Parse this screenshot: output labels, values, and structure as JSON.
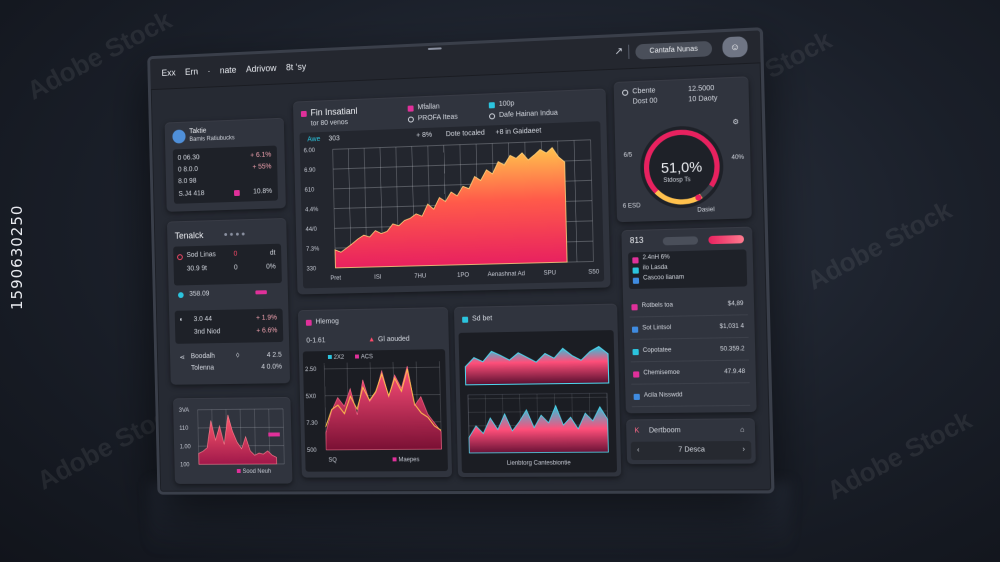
{
  "side_id": "1590630250",
  "watermark": "Adobe Stock",
  "topbar": {
    "menu": [
      "Exx",
      "Ern",
      "·",
      "nate",
      "Adrivow",
      "8t ‘sy"
    ],
    "pill": "Cantafa Nunas"
  },
  "left_panel": {
    "title": "Taktie",
    "subtitle": "Bamis Ratiubucks",
    "rows": [
      {
        "label": "0 06.30",
        "value": "+ 6.1%"
      },
      {
        "label": "0 8.0.0",
        "value": "+ 55%"
      },
      {
        "label": "8.0 98",
        "value": ""
      }
    ],
    "footer_label": "S.J4 418",
    "footer_value": "10.8%"
  },
  "mid_left_panel": {
    "title": "Tenalck",
    "rows": [
      {
        "a": "Sod Linas",
        "b": "0",
        "c": "dt"
      },
      {
        "a": "30.9 9t",
        "b": "0",
        "c": "0%"
      },
      {
        "a": "358.09",
        "b": "",
        "c": ""
      },
      {
        "a": "3.0 44",
        "b": "",
        "c": "+ 1.9%"
      },
      {
        "a": "3nd Niod",
        "b": "",
        "c": "+ 6.6%"
      },
      {
        "a": "Boodalh",
        "b": "",
        "c": "4 2.5"
      },
      {
        "a": "Tolenna",
        "b": "",
        "c": "4 0.0%"
      }
    ]
  },
  "main_chart": {
    "title": "Fin Insatianl",
    "subtitle": "tor 80 venos",
    "legend": [
      {
        "label": "Mfallan",
        "color": "#e0309a"
      },
      {
        "label": "PROFA Iteas",
        "color": "#d4d8e0"
      },
      {
        "label": "100p",
        "color": "#2bc4de"
      },
      {
        "label": "Dafe Hainan Indua",
        "color": "#d4d8e0"
      }
    ],
    "toolbar": [
      "Awe",
      "303",
      "+ 8%",
      "Dote tocaled",
      "+8 in Gaidaeet"
    ],
    "y_ticks": [
      "6.00",
      "6.90",
      "610",
      "4.4%",
      "44/0",
      "7.3%",
      "330"
    ],
    "x_ticks": [
      "Pret",
      "ISI",
      "7HU",
      "1PO",
      "Aenashnat Ad",
      "SPU",
      "S50"
    ],
    "series": [
      35,
      30,
      38,
      46,
      55,
      62,
      58,
      70,
      64,
      68,
      82,
      78,
      88,
      92,
      100,
      95,
      118,
      108,
      130,
      122,
      140,
      132,
      150,
      145,
      168,
      160,
      180,
      172,
      195,
      188,
      206,
      200,
      210,
      196,
      205,
      215,
      208,
      218,
      200,
      190
    ],
    "ylim": [
      0,
      230
    ]
  },
  "gauge": {
    "label_a": "Cbente",
    "label_b": "Dost 00",
    "val_a": "12.5000",
    "val_b": "10 Daoty",
    "center": "51,0%",
    "center_sub": "Stdosp Ts",
    "left_a": "6/5",
    "left_b": "6 ESD",
    "right": "40%",
    "bottom": "Dasiel",
    "percent": 51
  },
  "right_list": {
    "header": "813",
    "subrows": [
      "2.4nH 6%",
      "ilo Lasda",
      "Cascoo lianam"
    ],
    "rows": [
      {
        "label": "Rotbels toa",
        "value": "$4,89"
      },
      {
        "label": "Sot Lintsol",
        "value": "$1,031 4"
      },
      {
        "label": "Copotatee",
        "value": "50.359.2"
      },
      {
        "label": "Chemisemoe",
        "value": "47.9.48"
      },
      {
        "label": "Acila Nisswdd",
        "value": ""
      }
    ],
    "footer": [
      "Dertboom",
      "7 Desca"
    ]
  },
  "small_chart_left": {
    "y_ticks": [
      "3VA",
      "110",
      "1.00",
      "100"
    ],
    "x_label": "Sood Neuh",
    "series": [
      10,
      12,
      15,
      40,
      22,
      35,
      18,
      45,
      30,
      20,
      14,
      25,
      12,
      8,
      10,
      9,
      12,
      8,
      6
    ]
  },
  "bottom_mid_panel": {
    "title": "Hlemog",
    "tab_a": "0-1.61",
    "tab_b": "Gl aouded",
    "chart": {
      "y_ticks": [
        "2.50",
        "5X0",
        "7.30",
        "500"
      ],
      "x_label": "Maepes",
      "legend": [
        "2X2",
        "ACS"
      ],
      "series": [
        20,
        45,
        60,
        50,
        70,
        40,
        80,
        55,
        65,
        90,
        60,
        85,
        70,
        95,
        50,
        60,
        40,
        30,
        20
      ],
      "line": [
        15,
        35,
        40,
        30,
        50,
        35,
        60,
        45,
        55,
        75,
        50,
        70,
        55,
        80,
        40,
        30,
        25,
        15,
        10
      ]
    }
  },
  "bottom_right_panel": {
    "title": "Sd bet",
    "x_label": "Lienbtorg Cantesbiontie",
    "top_series": [
      30,
      45,
      38,
      55,
      48,
      40,
      52,
      44,
      36,
      50,
      42,
      58,
      46,
      38,
      52,
      60,
      48
    ],
    "bottom_series": [
      20,
      35,
      25,
      45,
      30,
      50,
      28,
      40,
      55,
      32,
      48,
      38,
      60,
      35,
      45,
      30,
      50,
      40,
      58,
      42
    ]
  }
}
